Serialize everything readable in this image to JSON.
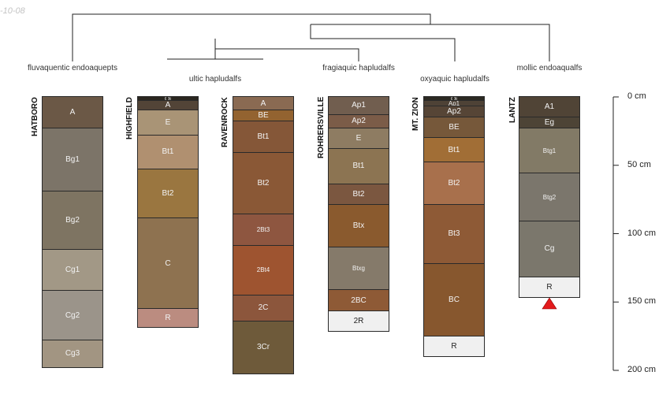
{
  "stamp": "-10-08",
  "taxa": [
    "fluvaquentic endoaquepts",
    "ultic hapludalfs",
    "fragiaquic hapludalfs",
    "oxyaquic hapludalfs",
    "mollic endoaqualfs"
  ],
  "profiles": [
    {
      "name": "HATBORO",
      "bottom_marker": false,
      "horizons": [
        {
          "label": "A",
          "top": 0,
          "bottom": 23,
          "color": "#6b5846"
        },
        {
          "label": "Bg1",
          "top": 23,
          "bottom": 69,
          "color": "#7c7468"
        },
        {
          "label": "Bg2",
          "top": 69,
          "bottom": 112,
          "color": "#7e7462"
        },
        {
          "label": "Cg1",
          "top": 112,
          "bottom": 142,
          "color": "#a29886"
        },
        {
          "label": "Cg2",
          "top": 142,
          "bottom": 178,
          "color": "#9b948a"
        },
        {
          "label": "Cg3",
          "top": 178,
          "bottom": 198,
          "color": "#a29582"
        }
      ]
    },
    {
      "name": "HIGHFIELD",
      "bottom_marker": false,
      "horizons": [
        {
          "label": "Oi",
          "top": 0,
          "bottom": 3,
          "color": "#2b2720"
        },
        {
          "label": "A",
          "top": 3,
          "bottom": 10,
          "color": "#524437"
        },
        {
          "label": "E",
          "top": 10,
          "bottom": 28,
          "color": "#a99476"
        },
        {
          "label": "Bt1",
          "top": 28,
          "bottom": 53,
          "color": "#b09070"
        },
        {
          "label": "Bt2",
          "top": 53,
          "bottom": 89,
          "color": "#9a7640"
        },
        {
          "label": "C",
          "top": 89,
          "bottom": 155,
          "color": "#8e7250"
        },
        {
          "label": "R",
          "top": 155,
          "bottom": 169,
          "color": "#bb8c80"
        }
      ]
    },
    {
      "name": "RAVENROCK",
      "bottom_marker": false,
      "horizons": [
        {
          "label": "A",
          "top": 0,
          "bottom": 10,
          "color": "#8a6a52"
        },
        {
          "label": "BE",
          "top": 10,
          "bottom": 18,
          "color": "#936330"
        },
        {
          "label": "Bt1",
          "top": 18,
          "bottom": 41,
          "color": "#855738"
        },
        {
          "label": "Bt2",
          "top": 41,
          "bottom": 86,
          "color": "#8a5836"
        },
        {
          "label": "2Bt3",
          "top": 86,
          "bottom": 109,
          "color": "#8e5640"
        },
        {
          "label": "2Bt4",
          "top": 109,
          "bottom": 145,
          "color": "#9e5430"
        },
        {
          "label": "2C",
          "top": 145,
          "bottom": 164,
          "color": "#8c563c"
        },
        {
          "label": "3Cr",
          "top": 164,
          "bottom": 203,
          "color": "#6e5a3a"
        }
      ]
    },
    {
      "name": "ROHRERSVILLE",
      "bottom_marker": false,
      "horizons": [
        {
          "label": "Ap1",
          "top": 0,
          "bottom": 13,
          "color": "#715e4f"
        },
        {
          "label": "Ap2",
          "top": 13,
          "bottom": 23,
          "color": "#7b5c48"
        },
        {
          "label": "E",
          "top": 23,
          "bottom": 38,
          "color": "#8e7c62"
        },
        {
          "label": "Bt1",
          "top": 38,
          "bottom": 64,
          "color": "#8c7452"
        },
        {
          "label": "Bt2",
          "top": 64,
          "bottom": 79,
          "color": "#7b5740"
        },
        {
          "label": "Btx",
          "top": 79,
          "bottom": 110,
          "color": "#8a5a2e"
        },
        {
          "label": "Btxg",
          "top": 110,
          "bottom": 141,
          "color": "#857a6a"
        },
        {
          "label": "2BC",
          "top": 141,
          "bottom": 157,
          "color": "#8e5a36"
        },
        {
          "label": "2R",
          "top": 157,
          "bottom": 172,
          "color": "#f0f0f0"
        }
      ]
    },
    {
      "name": "MT. ZION",
      "bottom_marker": false,
      "horizons": [
        {
          "label": "Oi",
          "top": 0,
          "bottom": 3,
          "color": "#2c2922"
        },
        {
          "label": "Ap1",
          "top": 3,
          "bottom": 7,
          "color": "#4e4236"
        },
        {
          "label": "Ap2",
          "top": 7,
          "bottom": 15,
          "color": "#564536"
        },
        {
          "label": "BE",
          "top": 15,
          "bottom": 30,
          "color": "#76583a"
        },
        {
          "label": "Bt1",
          "top": 30,
          "bottom": 48,
          "color": "#a16e36"
        },
        {
          "label": "Bt2",
          "top": 48,
          "bottom": 79,
          "color": "#a8704c"
        },
        {
          "label": "Bt3",
          "top": 79,
          "bottom": 122,
          "color": "#8e5a36"
        },
        {
          "label": "BC",
          "top": 122,
          "bottom": 175,
          "color": "#87572e"
        },
        {
          "label": "R",
          "top": 175,
          "bottom": 190,
          "color": "#f0f0f0"
        }
      ]
    },
    {
      "name": "LANTZ",
      "bottom_marker": true,
      "horizons": [
        {
          "label": "A1",
          "top": 0,
          "bottom": 15,
          "color": "#504436"
        },
        {
          "label": "Eg",
          "top": 15,
          "bottom": 23,
          "color": "#4d4436"
        },
        {
          "label": "Btg1",
          "top": 23,
          "bottom": 56,
          "color": "#827a66"
        },
        {
          "label": "Btg2",
          "top": 56,
          "bottom": 91,
          "color": "#7b766c"
        },
        {
          "label": "Cg",
          "top": 91,
          "bottom": 132,
          "color": "#7b776c"
        },
        {
          "label": "R",
          "top": 132,
          "bottom": 147,
          "color": "#f0f0f0"
        }
      ]
    }
  ],
  "depth_axis": {
    "max_depth": 200,
    "ticks": [
      0,
      50,
      100,
      150,
      200
    ],
    "tick_labels": [
      "0 cm",
      "50 cm",
      "100 cm",
      "150 cm",
      "200 cm"
    ]
  }
}
